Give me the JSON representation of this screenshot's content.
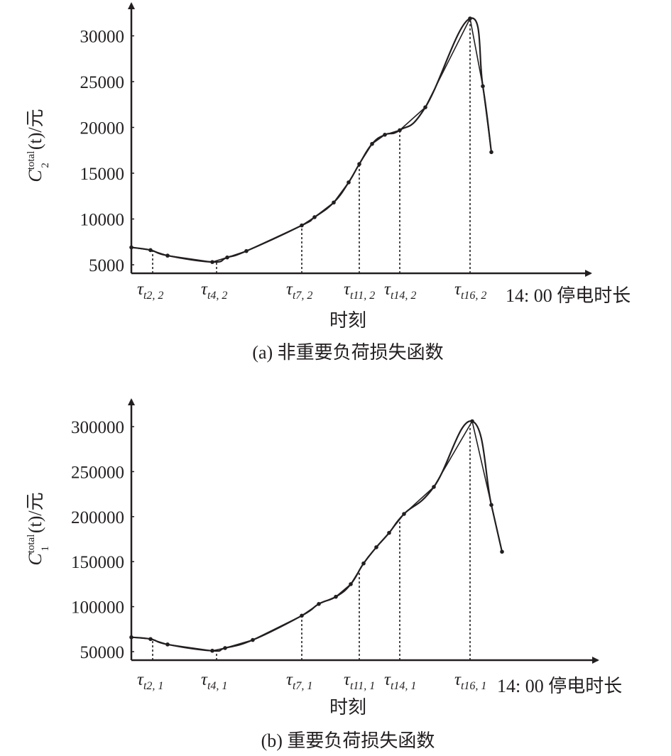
{
  "chart_data": [
    {
      "type": "line",
      "panel": "a",
      "caption": "(a) 非重要负荷损失函数",
      "xlabel": "时刻",
      "x_end_label": "14: 00 停电时长",
      "ylabel": {
        "base": "C",
        "sup": "total",
        "sub": "2",
        "tail": "(t)/元"
      },
      "yticks": [
        5000,
        10000,
        15000,
        20000,
        25000,
        30000
      ],
      "ylim": [
        4200,
        33000
      ],
      "xlim": [
        0,
        17.7
      ],
      "x_markers": [
        {
          "x": 1,
          "label": "τ",
          "sub": "t2, 2"
        },
        {
          "x": 4,
          "label": "τ",
          "sub": "t4, 2"
        },
        {
          "x": 8,
          "label": "τ",
          "sub": "t7, 2"
        },
        {
          "x": 10.7,
          "label": "τ",
          "sub": "t11, 2"
        },
        {
          "x": 12.6,
          "label": "τ",
          "sub": "t14, 2"
        },
        {
          "x": 15.9,
          "label": "τ",
          "sub": "t16, 2"
        }
      ],
      "series": [
        {
          "x": [
            0,
            0.9,
            1.7,
            3.8,
            4.5,
            5.4,
            8,
            8.6,
            9.5,
            10.2,
            10.7,
            11.3,
            11.9,
            12.6,
            13.8,
            15.9,
            16.5,
            16.9
          ],
          "values": [
            6900,
            6600,
            6000,
            5300,
            5800,
            6500,
            9300,
            10200,
            11800,
            14000,
            16000,
            18200,
            19200,
            19700,
            22200,
            31900,
            24500,
            17300
          ]
        }
      ]
    },
    {
      "type": "line",
      "panel": "b",
      "caption": "(b) 重要负荷损失函数",
      "xlabel": "时刻",
      "x_end_label": "14: 00 停电时长",
      "ylabel": {
        "base": "C",
        "sup": "total",
        "sub": "1",
        "tail": "(t)/元"
      },
      "yticks": [
        50000,
        100000,
        150000,
        200000,
        250000,
        300000
      ],
      "ylim": [
        42000,
        330000
      ],
      "xlim": [
        0,
        17.7
      ],
      "x_markers": [
        {
          "x": 1,
          "label": "τ",
          "sub": "t2, 1"
        },
        {
          "x": 4,
          "label": "τ",
          "sub": "t4, 1"
        },
        {
          "x": 8,
          "label": "τ",
          "sub": "t7, 1"
        },
        {
          "x": 10.7,
          "label": "τ",
          "sub": "t11, 1"
        },
        {
          "x": 12.6,
          "label": "τ",
          "sub": "t14, 1"
        },
        {
          "x": 15.9,
          "label": "τ",
          "sub": "t16, 1"
        }
      ],
      "series": [
        {
          "x": [
            0,
            0.9,
            1.7,
            3.8,
            4.4,
            5.7,
            8,
            8.8,
            9.6,
            10.3,
            10.9,
            11.5,
            12.1,
            12.8,
            14.2,
            16,
            16.9,
            17.4
          ],
          "values": [
            66000,
            64000,
            58000,
            51000,
            54000,
            63000,
            90000,
            103000,
            111000,
            125000,
            148000,
            166000,
            182000,
            203000,
            233000,
            306000,
            213000,
            161000
          ]
        }
      ]
    }
  ]
}
